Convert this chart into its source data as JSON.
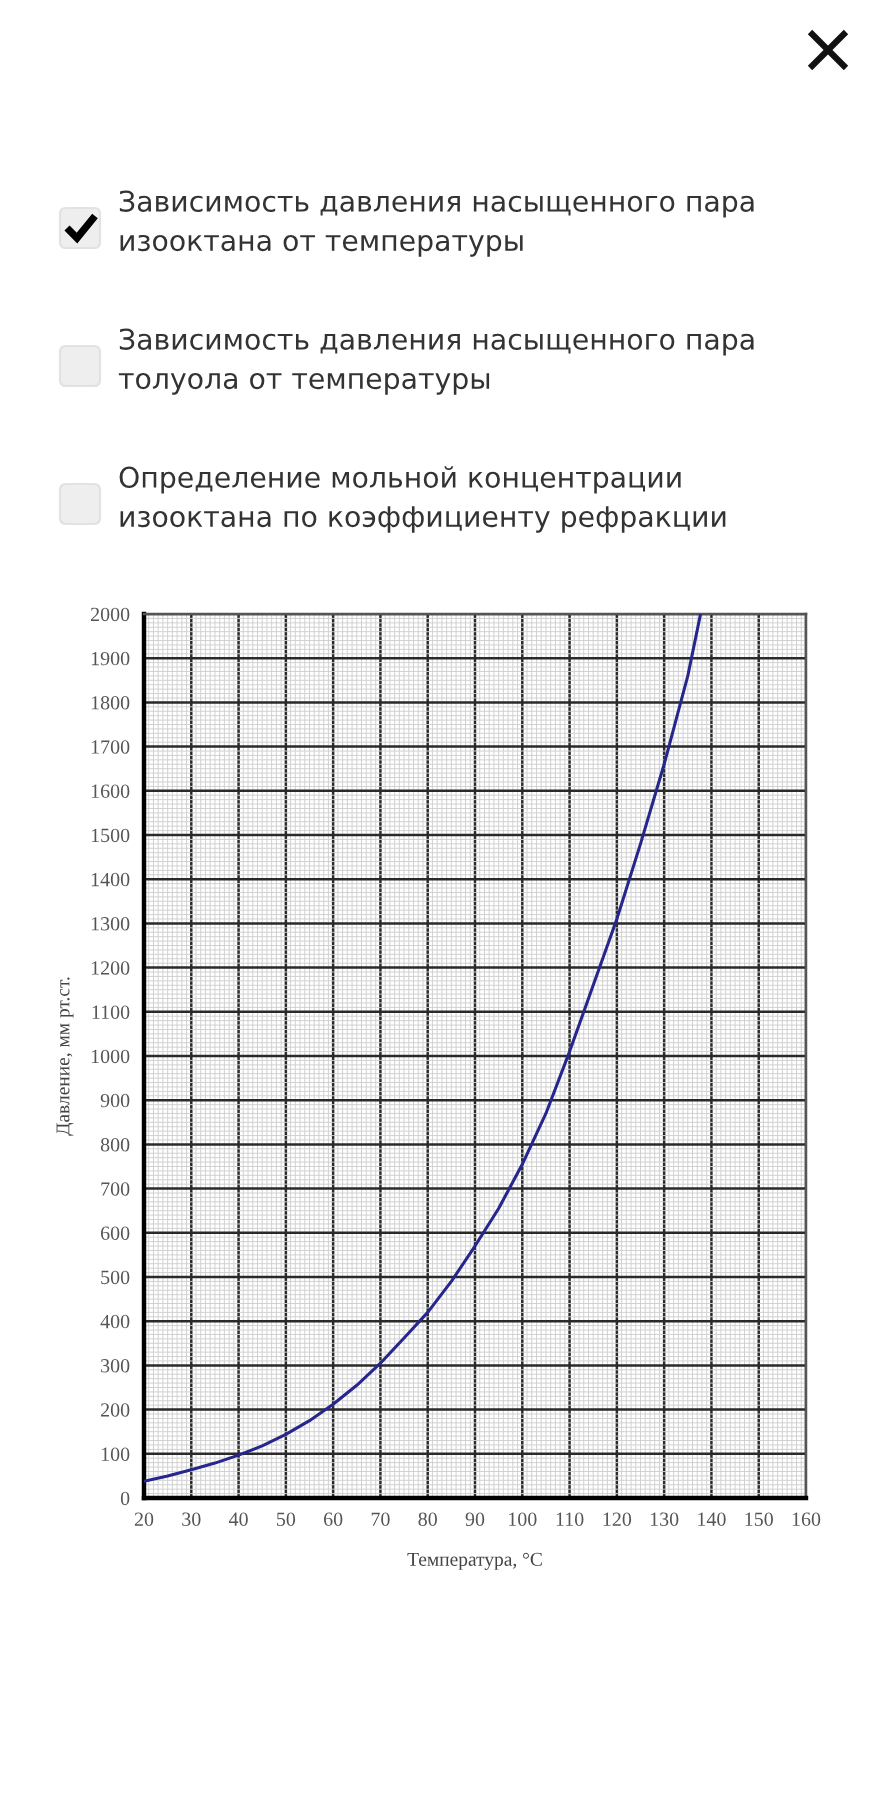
{
  "chart_data": [
    {
      "type": "other",
      "annotations": [
        "Зависимость давления насыщенного пара изооктана от температуры",
        "Зависимость давления насыщенного пара толуола от температуры",
        "Определение мольной концентрации изооктана по коэффициенту рефракции"
      ]
    },
    {
      "type": "line",
      "xlabel": "Температура, °C",
      "ylabel": "Давление, мм рт.ст.",
      "x": [
        20,
        25,
        30,
        35,
        40,
        45,
        50,
        55,
        60,
        65,
        70,
        75,
        80,
        85,
        90,
        95,
        100,
        105,
        110,
        115,
        120,
        125,
        130,
        135,
        137.7
      ],
      "series": [
        {
          "color": "#26268c",
          "values": [
            38,
            50,
            64,
            79,
            97,
            118,
            144,
            175,
            212,
            255,
            305,
            362,
            420,
            490,
            570,
            655,
            755,
            870,
            1010,
            1160,
            1310,
            1480,
            1660,
            1860,
            2000
          ]
        }
      ],
      "xlim": [
        20,
        160
      ],
      "ylim": [
        0,
        2000
      ],
      "xticks": [
        20,
        30,
        40,
        50,
        60,
        70,
        80,
        90,
        100,
        110,
        120,
        130,
        140,
        150,
        160
      ],
      "yticks": [
        0,
        100,
        200,
        300,
        400,
        500,
        600,
        700,
        800,
        900,
        1000,
        1100,
        1200,
        1300,
        1400,
        1500,
        1600,
        1700,
        1800,
        1900,
        2000
      ],
      "grid": true,
      "line_style": "solid"
    }
  ]
}
